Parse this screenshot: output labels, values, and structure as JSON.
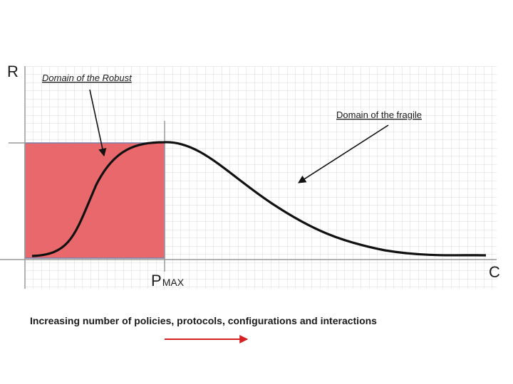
{
  "axes": {
    "y_label": "R",
    "x_label": "C",
    "marker_main": "P",
    "marker_sub": "MAX"
  },
  "annotations": {
    "robust": "Domain of the Robust",
    "fragile": "Domain of the fragile"
  },
  "caption": "Increasing number of policies, protocols, configurations and interactions",
  "colors": {
    "region_fill": "#e8686b",
    "region_border": "#7a7fa8",
    "curve": "#111111",
    "grid": "#d8d8d8",
    "axis": "#9a9a9a",
    "caption_arrow": "#d42020"
  }
}
